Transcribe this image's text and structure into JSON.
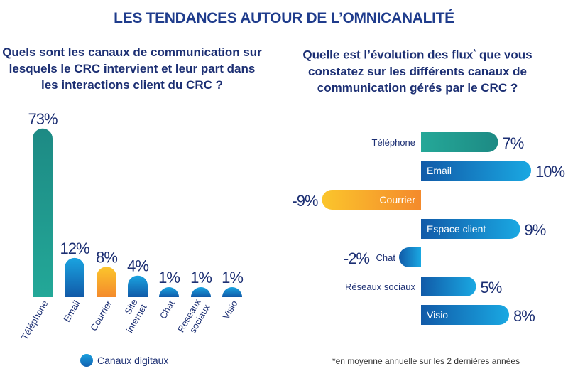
{
  "title": "LES TENDANCES AUTOUR DE L’OMNICANALITÉ",
  "chart_data": [
    {
      "type": "bar",
      "title": "Quels sont les canaux de communication sur lesquels le CRC intervient et leur part dans les interactions client du CRC ?",
      "categories": [
        "Téléphone",
        "Email",
        "Courrier",
        "Site internet",
        "Chat",
        "Réseaux sociaux",
        "Visio"
      ],
      "values": [
        73,
        12,
        8,
        4,
        1,
        1,
        1
      ],
      "labels": [
        "73%",
        "12%",
        "8%",
        "4%",
        "1%",
        "1%",
        "1%"
      ],
      "colors": [
        "teal",
        "digital",
        "orange",
        "digital",
        "digital",
        "digital",
        "digital"
      ],
      "legend": "Canaux digitaux"
    },
    {
      "type": "bar",
      "orientation": "horizontal",
      "title": "Quelle est l’évolution des flux* que vous constatez sur les différents canaux de communication gérés par le CRC ?",
      "categories": [
        "Téléphone",
        "Email",
        "Courrier",
        "Espace client",
        "Chat",
        "Réseaux sociaux",
        "Visio"
      ],
      "values": [
        7,
        10,
        -9,
        9,
        -2,
        5,
        8
      ],
      "labels": [
        "7%",
        "10%",
        "-9%",
        "9%",
        "-2%",
        "5%",
        "8%"
      ],
      "colors": [
        "teal",
        "digital",
        "orange",
        "digital",
        "digital",
        "digital",
        "digital"
      ],
      "footnote": "*en moyenne annuelle sur les 2 dernières années"
    }
  ],
  "palette": {
    "teal": "#1f9a8c",
    "digital": "#1582cc",
    "orange": "#f7a528",
    "text": "#1c2f73"
  }
}
